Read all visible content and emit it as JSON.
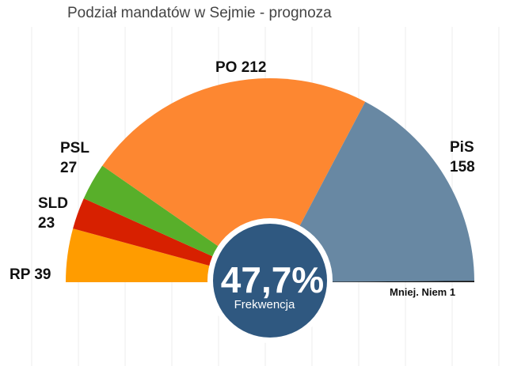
{
  "chart_data": {
    "type": "pie",
    "title": "Podział mandatów w Sejmie - prognoza",
    "grid": true,
    "slices": [
      {
        "party": "RP",
        "seats": 39,
        "color": "#FF9C00"
      },
      {
        "party": "SLD",
        "seats": 23,
        "color": "#D72000"
      },
      {
        "party": "PSL",
        "seats": 27,
        "color": "#58AF2A"
      },
      {
        "party": "PO",
        "seats": 212,
        "color": "#FD8731"
      },
      {
        "party": "PiS",
        "seats": 158,
        "color": "#6888A3"
      },
      {
        "party": "Mniej. Niem",
        "seats": 1,
        "color": "#111111"
      }
    ],
    "labels": [
      {
        "key": "rp",
        "lines": [
          "RP 39"
        ]
      },
      {
        "key": "sld",
        "lines": [
          "SLD",
          "23"
        ]
      },
      {
        "key": "psl",
        "lines": [
          "PSL",
          "27"
        ]
      },
      {
        "key": "po",
        "lines": [
          "PO 212"
        ]
      },
      {
        "key": "pis",
        "lines": [
          "PiS",
          "158"
        ]
      },
      {
        "key": "mn",
        "lines": [
          "Mniej. Niem 1"
        ]
      }
    ],
    "center": {
      "value": "47,7%",
      "caption": "Frekwencja",
      "color": "#2F5880"
    }
  }
}
